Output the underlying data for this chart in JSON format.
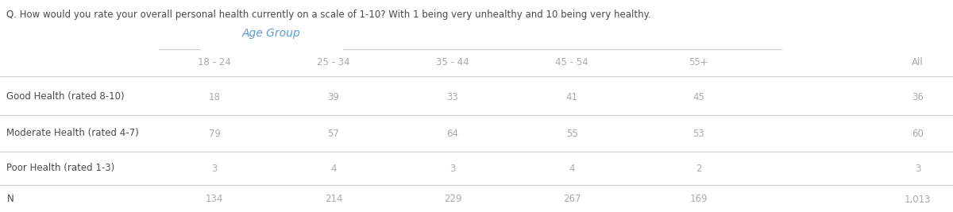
{
  "question": "Q. How would you rate your overall personal health currently on a scale of 1-10? With 1 being very unhealthy and 10 being very healthy.",
  "group_label": "Age Group",
  "col_headers": [
    "18 - 24",
    "25 - 34",
    "35 - 44",
    "45 - 54",
    "55+",
    "All"
  ],
  "row_labels": [
    "Good Health (rated 8-10)",
    "Moderate Health (rated 4-7)",
    "Poor Health (rated 1-3)",
    "N"
  ],
  "data": [
    [
      18,
      39,
      33,
      41,
      45,
      36
    ],
    [
      79,
      57,
      64,
      55,
      53,
      60
    ],
    [
      3,
      4,
      3,
      4,
      2,
      3
    ],
    [
      "134",
      "214",
      "229",
      "267",
      "169",
      "1,013"
    ]
  ],
  "bg_color": "#ffffff",
  "text_color": "#4a4a4a",
  "light_text_color": "#aaaaaa",
  "header_color": "#5b9bd5",
  "line_color": "#d0d0d0",
  "question_fontsize": 8.5,
  "group_label_fontsize": 10,
  "col_header_fontsize": 8.5,
  "row_label_fontsize": 8.5,
  "cell_fontsize": 8.5,
  "figsize": [
    12.0,
    2.67
  ],
  "dpi": 100
}
